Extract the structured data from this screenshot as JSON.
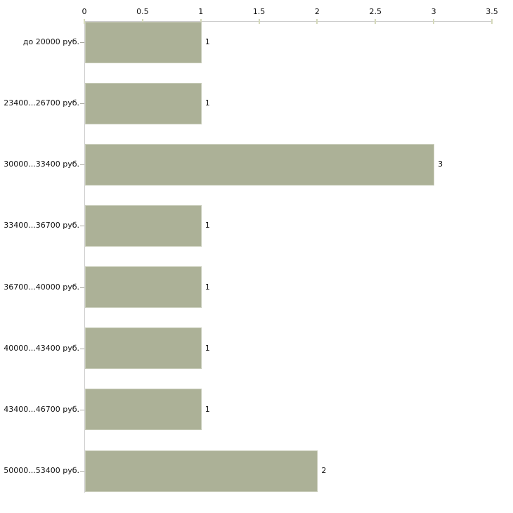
{
  "chart_data": {
    "type": "bar",
    "orientation": "horizontal",
    "title": "",
    "xlabel": "",
    "ylabel": "",
    "grid": false,
    "legend": null,
    "categories": [
      "до 20000 руб.",
      "23400...26700 руб.",
      "30000...33400 руб.",
      "33400...36700 руб.",
      "36700...40000 руб.",
      "40000...43400 руб.",
      "43400...46700 руб.",
      "50000...53400 руб."
    ],
    "values": [
      1,
      1,
      3,
      1,
      1,
      1,
      1,
      2
    ],
    "value_labels": [
      "1",
      "1",
      "3",
      "1",
      "1",
      "1",
      "1",
      "2"
    ],
    "x_axis": {
      "position": "top",
      "min": 0,
      "max": 3.5,
      "step": 0.5,
      "tick_labels": [
        "0",
        "0.5",
        "1",
        "1.5",
        "2",
        "2.5",
        "3",
        "3.5"
      ]
    },
    "colors": {
      "bar_fill": "#acb197",
      "bar_border": "#c7cbb8",
      "axis_line": "#cccccc",
      "x_tick_mark": "#d5d9bb",
      "y_tick_mark": "#a8a8a0",
      "text": "#111111",
      "background": "#ffffff"
    }
  }
}
